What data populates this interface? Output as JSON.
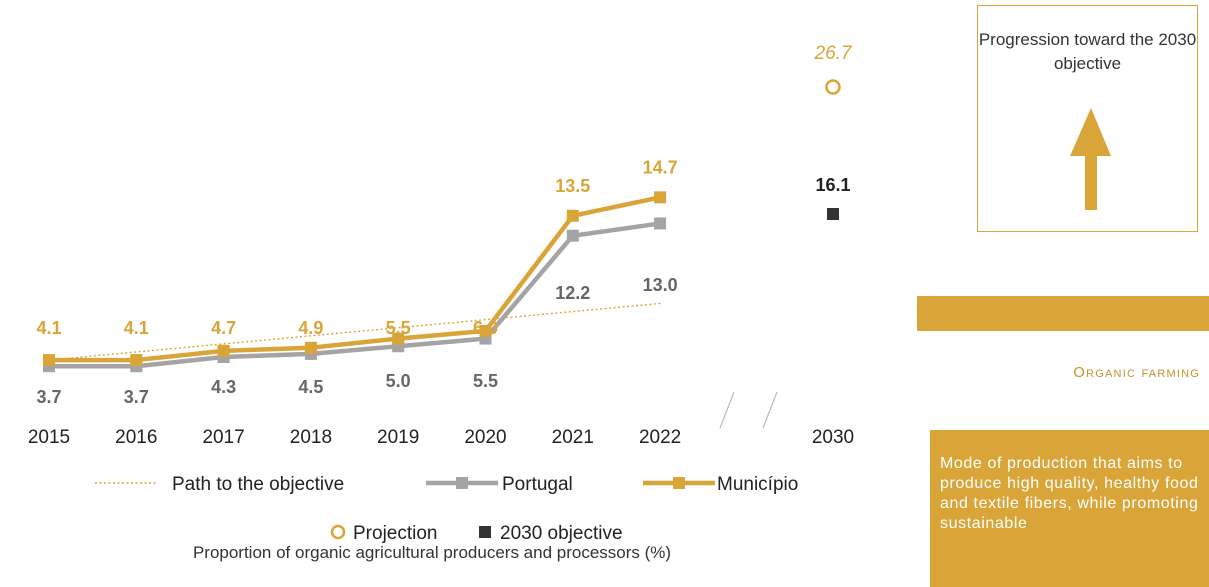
{
  "chart_data": {
    "type": "line",
    "categories": [
      "2015",
      "2016",
      "2017",
      "2018",
      "2019",
      "2020",
      "2021",
      "2022",
      "2030"
    ],
    "series": [
      {
        "name": "Município",
        "color": "#DAA538",
        "x": [
          "2015",
          "2016",
          "2017",
          "2018",
          "2019",
          "2020",
          "2021",
          "2022"
        ],
        "values": [
          4.1,
          4.1,
          4.7,
          4.9,
          5.5,
          6.0,
          13.5,
          14.7
        ]
      },
      {
        "name": "Portugal",
        "color": "#A6A3A6",
        "x": [
          "2015",
          "2016",
          "2017",
          "2018",
          "2019",
          "2020",
          "2021",
          "2022"
        ],
        "values": [
          3.7,
          3.7,
          4.3,
          4.5,
          5.0,
          5.5,
          12.2,
          13.0
        ]
      },
      {
        "name": "Path to the objective",
        "color": "#DAA538",
        "style": "dotted",
        "x": [
          "2015",
          "2022"
        ],
        "values": [
          4.1,
          7.8
        ]
      }
    ],
    "points": [
      {
        "name": "Projection",
        "x": "2030",
        "value": 26.7,
        "marker": "open-circle",
        "color": "#DAA538"
      },
      {
        "name": "2030 objective",
        "x": "2030",
        "value": 16.1,
        "marker": "square",
        "color": "#333333"
      }
    ],
    "value_labels": {
      "municipio": [
        "4.1",
        "4.1",
        "4.7",
        "4.9",
        "5.5",
        "6.0",
        "13.5",
        "14.7"
      ],
      "portugal": [
        "3.7",
        "3.7",
        "4.3",
        "4.5",
        "5.0",
        "5.5",
        "12.2",
        "13.0"
      ],
      "projection": "26.7",
      "objective": "16.1"
    },
    "legend": {
      "path": "Path to the objective",
      "portugal": "Portugal",
      "municipio": "Município",
      "projection": "Projection",
      "objective": "2030 objective"
    },
    "caption": "Proportion of organic agricultural producers and processors (%)",
    "axis_break": true
  },
  "side_panel": {
    "progress_title": "Progression toward the 2030 objective",
    "arrow_icon": "up-arrow-icon",
    "section_title": "Organic farming",
    "description": "Mode of production that aims to produce high quality, healthy food and textile fibers, while promoting sustainable"
  }
}
